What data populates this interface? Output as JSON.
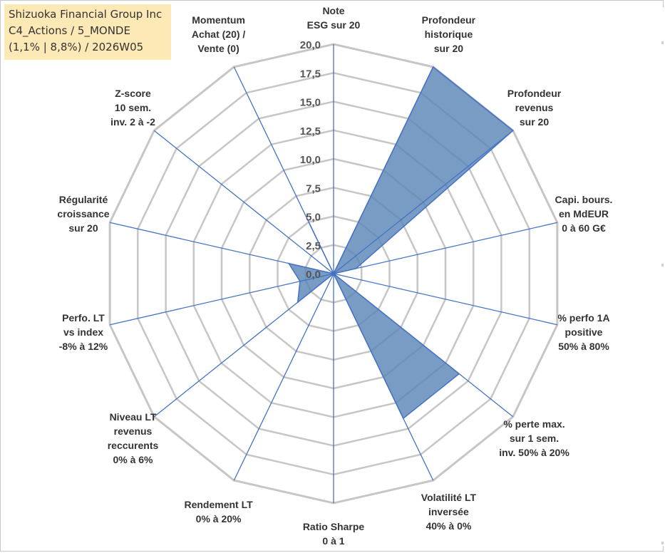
{
  "title": {
    "company": "Shizuoka Financial Group Inc",
    "category": "C4_Actions / 5_MONDE",
    "stats": "(1,1% | 8,8%) / 2026W05"
  },
  "chart_data": {
    "type": "radar",
    "rmax": 20,
    "ticks": [
      "0,0",
      "2,5",
      "5,0",
      "7,5",
      "10,0",
      "12,5",
      "15,0",
      "17,5",
      "20,0"
    ],
    "tick_values": [
      0,
      2.5,
      5,
      7.5,
      10,
      12.5,
      15,
      17.5,
      20
    ],
    "axes": [
      {
        "lines": [
          "Note",
          "ESG sur 20"
        ],
        "value": 0
      },
      {
        "lines": [
          "Profondeur",
          "historique",
          "sur 20"
        ],
        "value": 20
      },
      {
        "lines": [
          "Profondeur",
          "revenus",
          "sur 20"
        ],
        "value": 20
      },
      {
        "lines": [
          "Capi. bours.",
          "en MdEUR",
          "0 à 60 G€"
        ],
        "value": 2
      },
      {
        "lines": [
          "% perfo 1A",
          "positive",
          "50% à 80%"
        ],
        "value": 0
      },
      {
        "lines": [
          "% perte max.",
          "sur 1 sem.",
          "inv. 50% à 20%"
        ],
        "value": 14
      },
      {
        "lines": [
          "Volatilité LT",
          "inversée",
          "40% à 0%"
        ],
        "value": 14
      },
      {
        "lines": [
          "Ratio Sharpe",
          "0 à 1"
        ],
        "value": 0
      },
      {
        "lines": [
          "Rendement LT",
          "0% à 20%"
        ],
        "value": 0
      },
      {
        "lines": [
          "Niveau LT",
          "revenus",
          "reccurents",
          "0% à 6%"
        ],
        "value": 4
      },
      {
        "lines": [
          "Perfo. LT",
          "vs index",
          "-8% à 12%"
        ],
        "value": 3
      },
      {
        "lines": [
          "Régularité",
          "croissance",
          "sur 20"
        ],
        "value": 4
      },
      {
        "lines": [
          "Z-score",
          "10 sem.",
          "inv. 2 à -2"
        ],
        "value": 0
      },
      {
        "lines": [
          "Momentum",
          "Achat (20) /",
          "Vente (0)"
        ],
        "value": 5
      }
    ],
    "colors": {
      "grid": "#c6c6c6",
      "spoke": "#4472c4",
      "fill": "#5b86b8",
      "outline": "#4472c4"
    }
  }
}
